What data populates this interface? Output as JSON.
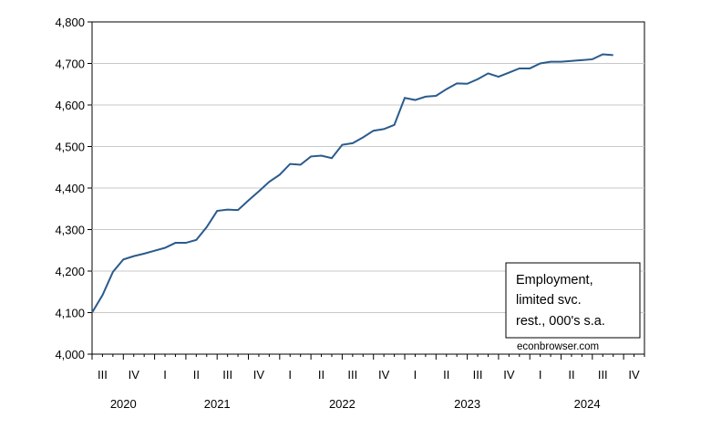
{
  "chart_data": {
    "type": "line",
    "title": "",
    "xlabel": "",
    "ylabel": "",
    "ylim": [
      4000,
      4800
    ],
    "y_ticks": [
      "4,000",
      "4,100",
      "4,200",
      "4,300",
      "4,400",
      "4,500",
      "4,600",
      "4,700",
      "4,800"
    ],
    "y_tick_values": [
      4000,
      4100,
      4200,
      4300,
      4400,
      4500,
      4600,
      4700,
      4800
    ],
    "grid": "horizontal",
    "x_quarter_labels": [
      "III",
      "IV",
      "I",
      "II",
      "III",
      "IV",
      "I",
      "II",
      "III",
      "IV",
      "I",
      "II",
      "III",
      "IV",
      "I",
      "II",
      "III",
      "IV"
    ],
    "x_year_labels": [
      "2020",
      "2021",
      "2022",
      "2023",
      "2024"
    ],
    "x_start": "2020-07",
    "x_end": "2024-12",
    "series": [
      {
        "name": "",
        "color": "#2a5b8c",
        "x": [
          "2020-07",
          "2020-08",
          "2020-09",
          "2020-10",
          "2020-11",
          "2020-12",
          "2021-01",
          "2021-02",
          "2021-03",
          "2021-04",
          "2021-05",
          "2021-06",
          "2021-07",
          "2021-08",
          "2021-09",
          "2021-10",
          "2021-11",
          "2021-12",
          "2022-01",
          "2022-02",
          "2022-03",
          "2022-04",
          "2022-05",
          "2022-06",
          "2022-07",
          "2022-08",
          "2022-09",
          "2022-10",
          "2022-11",
          "2022-12",
          "2023-01",
          "2023-02",
          "2023-03",
          "2023-04",
          "2023-05",
          "2023-06",
          "2023-07",
          "2023-08",
          "2023-09",
          "2023-10",
          "2023-11",
          "2023-12",
          "2024-01",
          "2024-02",
          "2024-03",
          "2024-04",
          "2024-05",
          "2024-06",
          "2024-07",
          "2024-08",
          "2024-09"
        ],
        "values": [
          4100,
          4142,
          4198,
          4228,
          4236,
          4242,
          4249,
          4256,
          4268,
          4268,
          4275,
          4306,
          4345,
          4348,
          4347,
          4370,
          4392,
          4415,
          4432,
          4458,
          4456,
          4476,
          4478,
          4472,
          4504,
          4508,
          4522,
          4538,
          4542,
          4552,
          4617,
          4612,
          4620,
          4622,
          4638,
          4652,
          4651,
          4662,
          4676,
          4668,
          4678,
          4688,
          4688,
          4700,
          4704,
          4704,
          4706,
          4708,
          4710,
          4722,
          4720
        ]
      }
    ],
    "legend_text": [
      "Employment,",
      "limited svc.",
      "rest., 000's s.a."
    ],
    "legend_placement": "bottom-right",
    "watermark": "econbrowser.com"
  }
}
